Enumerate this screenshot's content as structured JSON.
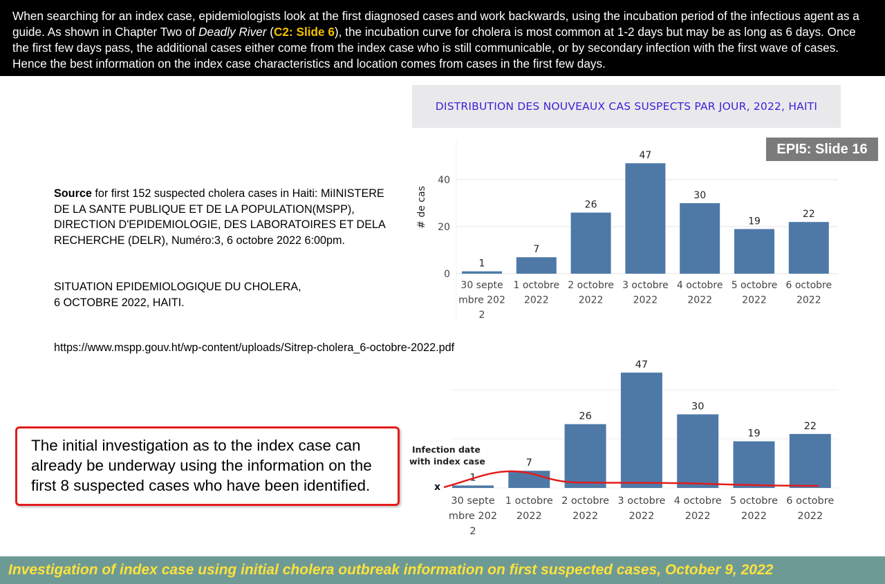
{
  "intro": {
    "part1": "When searching for an index case, epidemiologists look at the first diagnosed cases and work backwards, using the incubation period of the infectious agent as a guide. As shown in Chapter Two of ",
    "book_title": "Deadly River",
    "paren_open": " (",
    "slide_ref": "C2: Slide 6",
    "part2": "), the incubation curve for cholera is most common at 1-2 days but may be as long as 6 days. Once the first few days pass, the additional cases either come from the index case who is still communicable, or by secondary infection with the first wave of cases.  Hence the best information on the index case characteristics and location comes from cases in the first few days."
  },
  "slide_badge": "EPI5: Slide 16",
  "source": {
    "bold": "Source",
    "text": " for first 152 suspected cholera cases in Haiti: MiINISTERE DE LA SANTE PUBLIQUE ET DE LA POPULATION(MSPP), DIRECTION D'EPIDEMIOLOGIE, DES LABORATOIRES ET DELA RECHERCHE (DELR), Numéro:3, 6 octobre 2022 6:00pm.",
    "situation_line1": "SITUATION EPIDEMIOLOGIQUE DU CHOLERA,",
    "situation_line2": "6 OCTOBRE 2022, HAITI.",
    "url": "https://www.mspp.gouv.ht/wp-content/uploads/Sitrep-cholera_6-octobre-2022.pdf"
  },
  "callout": "The initial investigation as to the index case can already be underway using the information on the first 8 suspected cases who have been identified.",
  "footer": "Investigation of index case using initial cholera outbreak information on first suspected cases, October 9, 2022",
  "chart_data": [
    {
      "type": "bar",
      "title": "DISTRIBUTION DES NOUVEAUX CAS SUSPECTS PAR JOUR, 2022, HAITI",
      "ylabel": "# de cas",
      "xlabel": "",
      "ylim": [
        0,
        50
      ],
      "yticks": [
        0,
        20,
        40
      ],
      "categories": [
        [
          "30 septe",
          "mbre 202",
          "2"
        ],
        [
          "1 octobre",
          "2022"
        ],
        [
          "2 octobre",
          "2022"
        ],
        [
          "3 octobre",
          "2022"
        ],
        [
          "4 octobre",
          "2022"
        ],
        [
          "5 octobre",
          "2022"
        ],
        [
          "6 octobre",
          "2022"
        ]
      ],
      "values": [
        1,
        7,
        26,
        47,
        30,
        19,
        22
      ],
      "color": "#4e79a7"
    },
    {
      "type": "bar",
      "title": "",
      "ylim": [
        0,
        50
      ],
      "categories": [
        [
          "30 septe",
          "mbre 202",
          "2"
        ],
        [
          "1 octobre",
          "2022"
        ],
        [
          "2 octobre",
          "2022"
        ],
        [
          "3 octobre",
          "2022"
        ],
        [
          "4 octobre",
          "2022"
        ],
        [
          "5 octobre",
          "2022"
        ],
        [
          "6 octobre",
          "2022"
        ]
      ],
      "values": [
        1,
        7,
        26,
        47,
        30,
        19,
        22
      ],
      "color": "#4e79a7",
      "annotation_line1": "Infection date",
      "annotation_line2": "with index case",
      "marker": "x",
      "curve_color": "#e31b1b"
    }
  ]
}
